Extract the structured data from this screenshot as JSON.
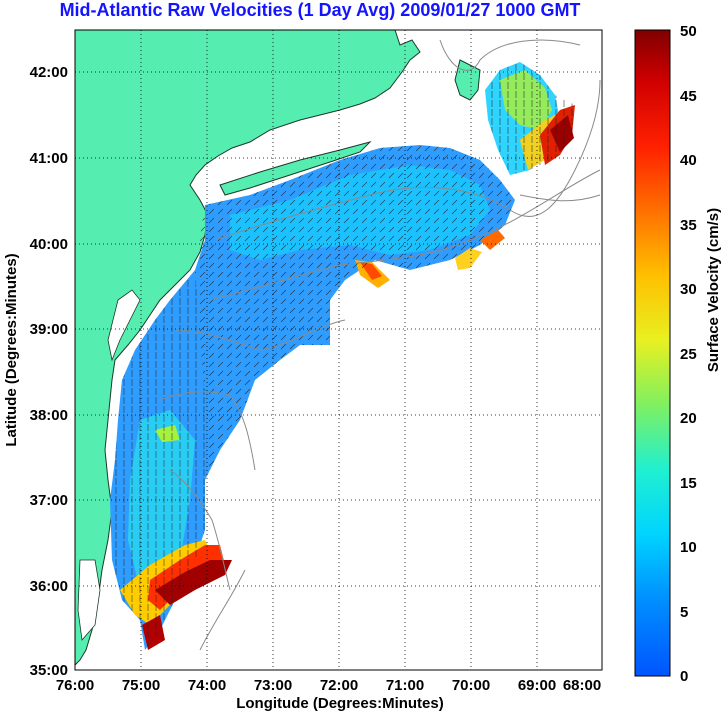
{
  "title": "Mid-Atlantic Raw Velocities (1 Day Avg) 2009/01/27 1000 GMT",
  "map": {
    "xlabel": "Longitude (Degrees:Minutes)",
    "ylabel": "Latitude (Degrees:Minutes)",
    "x_ticks": [
      "76:00",
      "75:00",
      "74:00",
      "73:00",
      "72:00",
      "71:00",
      "70:00",
      "69:00",
      "68:00"
    ],
    "y_ticks": [
      "42:00",
      "41:00",
      "40:00",
      "39:00",
      "38:00",
      "37:00",
      "36:00",
      "35:00"
    ],
    "lon_range": [
      -76,
      -68
    ],
    "lat_range": [
      35,
      42.5
    ],
    "land_color": "#55eeb0",
    "grid": "dotted"
  },
  "colorbar": {
    "label": "Surface Velocity (cm/s)",
    "ticks": [
      "0",
      "5",
      "10",
      "15",
      "20",
      "25",
      "30",
      "35",
      "40",
      "45",
      "50"
    ],
    "range": [
      0,
      50
    ],
    "colormap": "jet"
  }
}
